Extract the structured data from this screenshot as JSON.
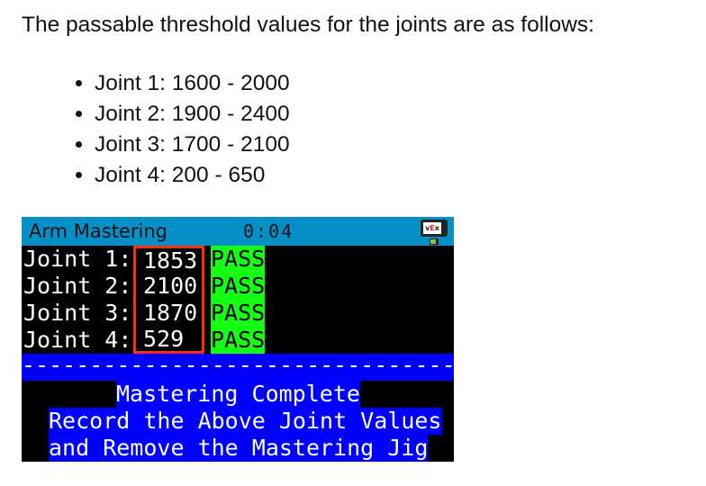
{
  "intro": "The passable threshold values for the joints are as follows:",
  "thresholds": [
    "Joint 1: 1600 - 2000",
    "Joint 2: 1900 - 2400",
    "Joint 3: 1700 - 2100",
    "Joint 4: 200 - 650"
  ],
  "screen": {
    "title": "Arm Mastering",
    "timer": "0:04",
    "brand_icon": "vex-brain-icon",
    "brand_text": {
      "v": "v",
      "e": "E",
      "x": "x"
    },
    "joints": [
      {
        "label": "Joint 1:",
        "value": "1853",
        "status": "PASS"
      },
      {
        "label": "Joint 2:",
        "value": "2100",
        "status": "PASS"
      },
      {
        "label": "Joint 3:",
        "value": "1870",
        "status": "PASS"
      },
      {
        "label": "Joint 4:",
        "value": "529",
        "status": "PASS"
      }
    ],
    "divider": "--------------------------------",
    "messages": [
      "Mastering Complete",
      "Record the Above Joint Values",
      "and Remove the Mastering Jig"
    ],
    "colors": {
      "header": "#0590c8",
      "pass": "#14ff14",
      "highlight": "#ff2a0a",
      "message_bg": "#0000ff"
    }
  }
}
